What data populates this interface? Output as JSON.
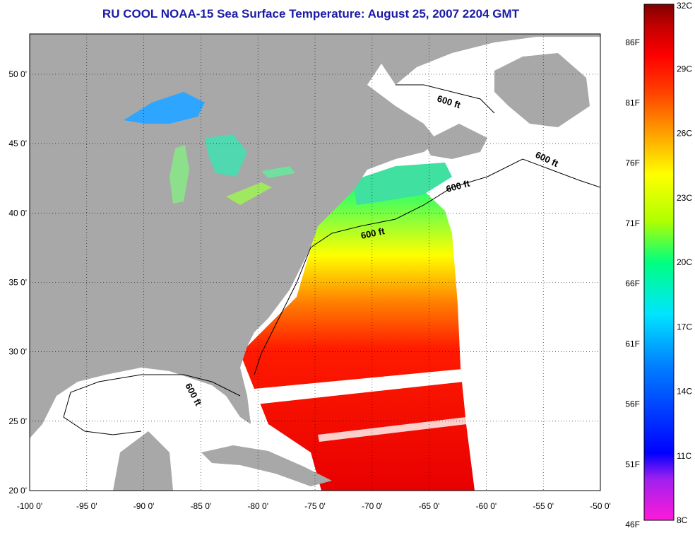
{
  "title": "RU COOL  NOAA-15  Sea Surface Temperature:  August 25, 2007 2204 GMT",
  "map": {
    "longitude_ticks": [
      "-100 0'",
      "-95 0'",
      "-90 0'",
      "-85 0'",
      "-80 0'",
      "-75 0'",
      "-70 0'",
      "-65 0'",
      "-60 0'",
      "-55 0'",
      "-50 0'"
    ],
    "latitude_ticks": [
      "50 0'",
      "45 0'",
      "40 0'",
      "35 0'",
      "30 0'",
      "25 0'",
      "20 0'"
    ],
    "contour_labels": [
      "600 ft",
      "600 ft",
      "600 ft",
      "600 ft",
      "600 ft"
    ],
    "land_color": "#a8a8a8",
    "cloud_color": "#ffffff"
  },
  "colorbar": {
    "celsius": [
      "32C",
      "29C",
      "26C",
      "23C",
      "20C",
      "17C",
      "14C",
      "11C",
      "8C"
    ],
    "fahrenheit": [
      "86F",
      "81F",
      "76F",
      "71F",
      "66F",
      "61F",
      "56F",
      "51F",
      "46F"
    ],
    "colors": [
      "#ff1ad8",
      "#a020f0",
      "#0000ff",
      "#0080ff",
      "#00e5ff",
      "#00ff80",
      "#b0ff00",
      "#ffff00",
      "#ffa000",
      "#ff4000",
      "#ff0000",
      "#c00000",
      "#800000"
    ]
  }
}
